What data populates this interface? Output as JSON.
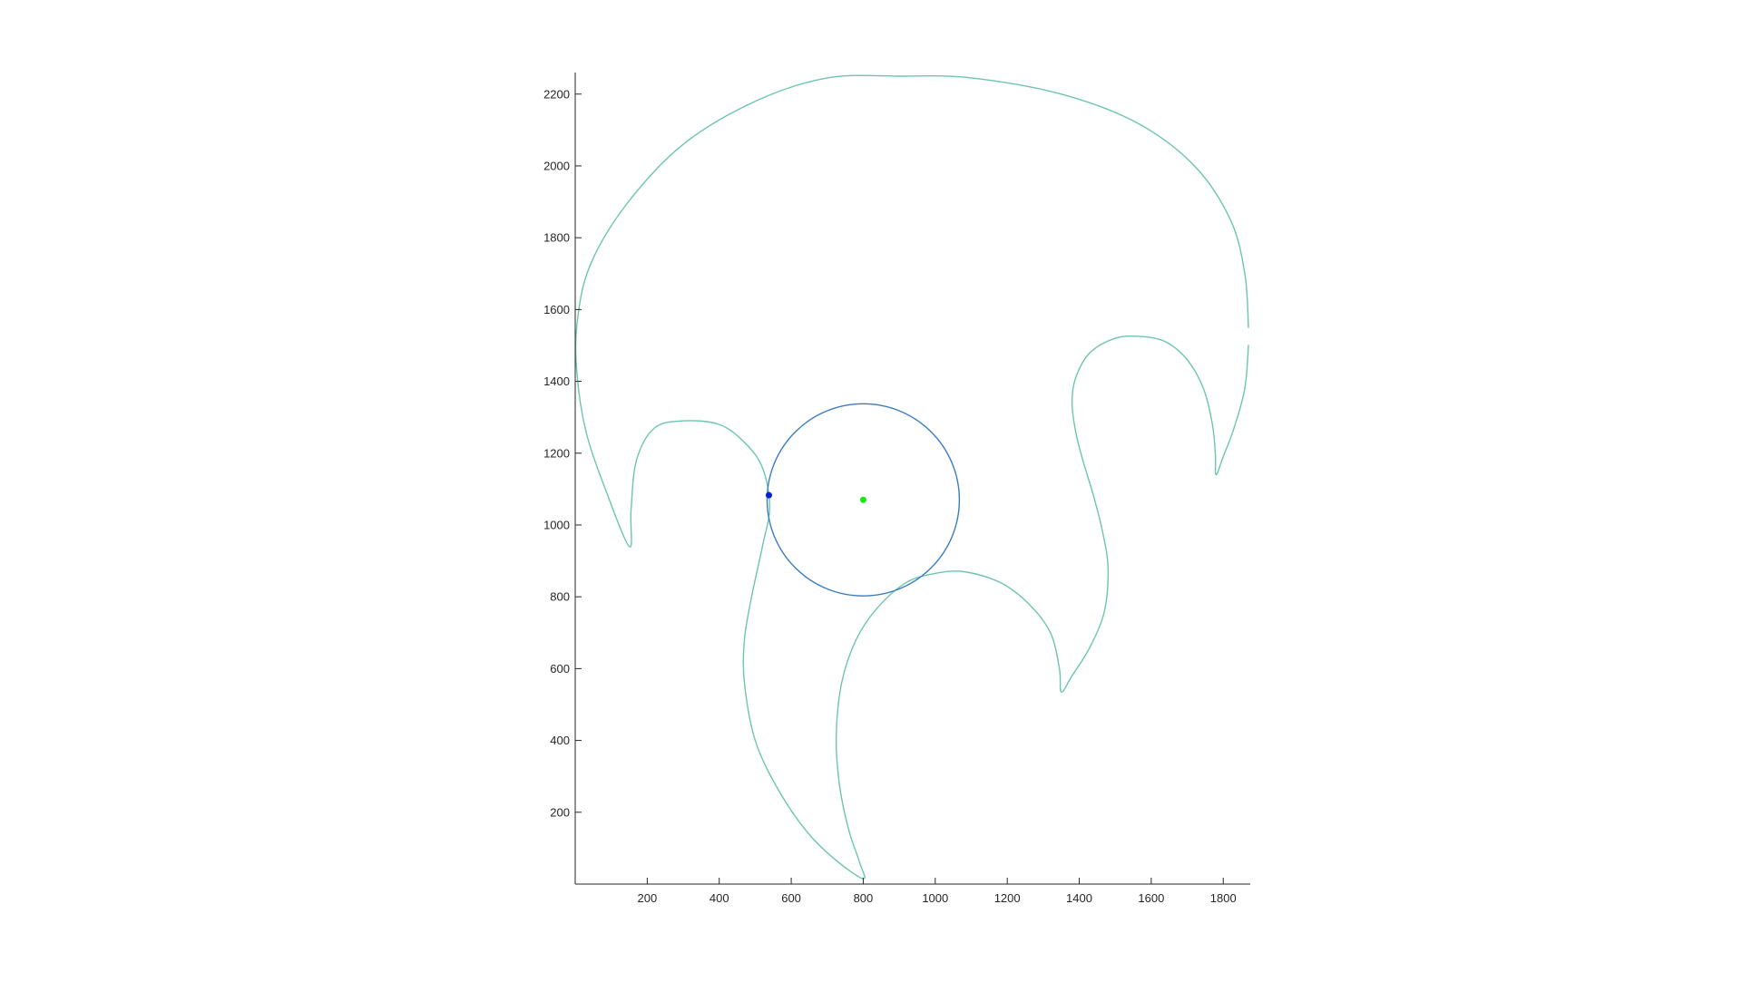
{
  "chart_data": {
    "type": "line",
    "title": "",
    "xlabel": "",
    "ylabel": "",
    "xlim": [
      0,
      1875
    ],
    "ylim": [
      0,
      2260
    ],
    "xticks": [
      200,
      400,
      600,
      800,
      1000,
      1200,
      1400,
      1600,
      1800
    ],
    "yticks": [
      200,
      400,
      600,
      800,
      1000,
      1200,
      1400,
      1600,
      1800,
      2000,
      2200
    ],
    "grid": false,
    "series": [
      {
        "kind": "curve",
        "color": "#6cc5b0",
        "points": [
          [
            1870,
            1550
          ],
          [
            1860,
            1700
          ],
          [
            1820,
            1850
          ],
          [
            1720,
            2000
          ],
          [
            1560,
            2120
          ],
          [
            1350,
            2200
          ],
          [
            1100,
            2245
          ],
          [
            900,
            2250
          ],
          [
            700,
            2245
          ],
          [
            500,
            2180
          ],
          [
            300,
            2060
          ],
          [
            140,
            1890
          ],
          [
            40,
            1720
          ],
          [
            5,
            1560
          ],
          [
            5,
            1420
          ],
          [
            30,
            1260
          ],
          [
            80,
            1110
          ],
          [
            150,
            940
          ],
          [
            155,
            1040
          ],
          [
            170,
            1180
          ],
          [
            220,
            1270
          ],
          [
            300,
            1290
          ],
          [
            400,
            1280
          ],
          [
            470,
            1230
          ],
          [
            520,
            1160
          ],
          [
            540,
            1050
          ],
          [
            520,
            940
          ],
          [
            490,
            800
          ],
          [
            470,
            680
          ],
          [
            470,
            560
          ],
          [
            500,
            400
          ],
          [
            560,
            270
          ],
          [
            640,
            150
          ],
          [
            720,
            70
          ],
          [
            800,
            15
          ],
          [
            790,
            60
          ],
          [
            760,
            150
          ],
          [
            735,
            270
          ],
          [
            725,
            410
          ],
          [
            740,
            560
          ],
          [
            780,
            680
          ],
          [
            840,
            770
          ],
          [
            920,
            840
          ],
          [
            1000,
            865
          ],
          [
            1080,
            870
          ],
          [
            1180,
            840
          ],
          [
            1260,
            780
          ],
          [
            1320,
            700
          ],
          [
            1345,
            600
          ],
          [
            1350,
            535
          ],
          [
            1380,
            580
          ],
          [
            1430,
            660
          ],
          [
            1470,
            760
          ],
          [
            1480,
            880
          ],
          [
            1465,
            980
          ],
          [
            1440,
            1080
          ],
          [
            1410,
            1180
          ],
          [
            1390,
            1260
          ],
          [
            1380,
            1340
          ],
          [
            1390,
            1410
          ],
          [
            1430,
            1480
          ],
          [
            1500,
            1520
          ],
          [
            1570,
            1525
          ],
          [
            1640,
            1510
          ],
          [
            1700,
            1460
          ],
          [
            1745,
            1380
          ],
          [
            1770,
            1280
          ],
          [
            1778,
            1200
          ],
          [
            1780,
            1140
          ],
          [
            1800,
            1190
          ],
          [
            1830,
            1270
          ],
          [
            1860,
            1380
          ],
          [
            1870,
            1500
          ]
        ]
      },
      {
        "kind": "circle",
        "color": "#3a7dbf",
        "center": [
          800,
          1070
        ],
        "radius": 267
      },
      {
        "kind": "marker",
        "color": "#0b1fd6",
        "points": [
          [
            538,
            1083
          ]
        ]
      },
      {
        "kind": "marker",
        "color": "#19e619",
        "points": [
          [
            800,
            1070
          ]
        ]
      }
    ]
  }
}
